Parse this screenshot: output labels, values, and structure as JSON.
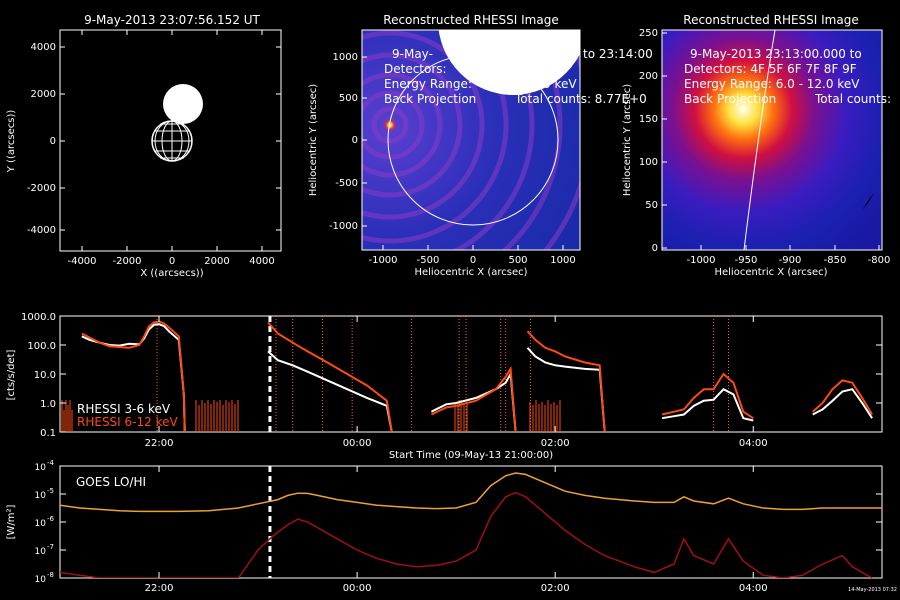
{
  "colors": {
    "background": "#000000",
    "axis": "#ffffff",
    "rhessi_low": "#ffffff",
    "rhessi_high": "#ff4a10",
    "goes_lo": "#f0a030",
    "goes_hi": "#a01010",
    "marker_line": "#ff6030"
  },
  "panel1": {
    "title": "9-May-2013 23:07:56.152 UT",
    "xlabel": "X ((arcsecs))",
    "ylabel": "Y ((arcsecs))",
    "xticks": [
      "-4000",
      "-2000",
      "0",
      "2000",
      "4000"
    ],
    "yticks": [
      "4000",
      "2000",
      "0",
      "-2000",
      "-4000"
    ]
  },
  "panel2": {
    "title": "Reconstructed RHESSI Image",
    "lines": [
      "9-May-",
      "to 23:14:00",
      "Detectors:",
      "Energy Range:",
      "0 keV",
      "Back Projection",
      "Total counts: 8.77E+0"
    ],
    "xlabel": "Heliocentric X (arcsec)",
    "ylabel": "Heliocentric Y (arcsec)",
    "xticks": [
      "-1000",
      "-500",
      "0",
      "500",
      "1000"
    ],
    "yticks": [
      "1000",
      "500",
      "0",
      "-500",
      "-1000"
    ]
  },
  "panel3": {
    "title": "Reconstructed RHESSI Image",
    "lines": [
      "9-May-2013 23:13:00.000 to",
      "Detectors: 4F 5F 6F 7F 8F 9F",
      "Energy Range: 6.0 - 12.0 keV",
      "Back Projection",
      "Total counts:"
    ],
    "xlabel": "Heliocentric X (arcsec)",
    "ylabel": "Heliocentric Y (arcsec)",
    "xticks": [
      "-1000",
      "-950",
      "-900",
      "-850",
      "-800"
    ],
    "yticks": [
      "250",
      "200",
      "150",
      "100",
      "50",
      "0"
    ]
  },
  "chart_data": [
    {
      "type": "line",
      "ylabel": "[cts/s/det]",
      "xlabel": "Start Time (09-May-13 21:00:00)",
      "x_unit": "hours since 21:00",
      "xlim": [
        0,
        8.3
      ],
      "ylim_log": [
        0.1,
        1000
      ],
      "yticks": [
        "0.1",
        "1.0",
        "10.0",
        "100.0",
        "1000.0"
      ],
      "xticks": [
        {
          "label": "22:00",
          "x": 1.0
        },
        {
          "label": "00:00",
          "x": 3.0
        },
        {
          "label": "02:00",
          "x": 5.0
        },
        {
          "label": "04:00",
          "x": 7.0
        }
      ],
      "legend": [
        "RHESSI  3-6 keV",
        "RHESSI  6-12 keV"
      ],
      "series": [
        {
          "name": "RHESSI  3-6 keV",
          "points": [
            [
              0.22,
              200
            ],
            [
              0.3,
              150
            ],
            [
              0.4,
              120
            ],
            [
              0.5,
              100
            ],
            [
              0.6,
              95
            ],
            [
              0.7,
              110
            ],
            [
              0.8,
              105
            ],
            [
              0.85,
              170
            ],
            [
              0.9,
              350
            ],
            [
              0.95,
              500
            ],
            [
              1.0,
              520
            ],
            [
              1.05,
              450
            ],
            [
              1.1,
              300
            ],
            [
              1.2,
              150
            ],
            [
              1.25,
              2
            ],
            [
              1.26,
              0.1
            ]
          ]
        },
        {
          "name": "RHESSI  6-12 keV",
          "points": [
            [
              0.22,
              250
            ],
            [
              0.3,
              180
            ],
            [
              0.4,
              120
            ],
            [
              0.5,
              90
            ],
            [
              0.6,
              85
            ],
            [
              0.7,
              80
            ],
            [
              0.8,
              100
            ],
            [
              0.85,
              200
            ],
            [
              0.9,
              450
            ],
            [
              0.95,
              600
            ],
            [
              1.0,
              650
            ],
            [
              1.05,
              550
            ],
            [
              1.1,
              400
            ],
            [
              1.2,
              200
            ],
            [
              1.25,
              2
            ],
            [
              1.26,
              0.1
            ]
          ]
        },
        {
          "name": "RHESSI  3-6 keV",
          "points": [
            [
              2.1,
              60
            ],
            [
              2.2,
              30
            ],
            [
              2.35,
              20
            ],
            [
              2.5,
              12
            ],
            [
              2.7,
              6
            ],
            [
              2.9,
              3
            ],
            [
              3.1,
              1.5
            ],
            [
              3.3,
              0.8
            ],
            [
              3.35,
              0.1
            ]
          ]
        },
        {
          "name": "RHESSI  6-12 keV",
          "points": [
            [
              2.1,
              600
            ],
            [
              2.2,
              250
            ],
            [
              2.35,
              120
            ],
            [
              2.5,
              60
            ],
            [
              2.7,
              25
            ],
            [
              2.9,
              10
            ],
            [
              3.1,
              4
            ],
            [
              3.3,
              1.2
            ],
            [
              3.35,
              0.1
            ]
          ]
        },
        {
          "name": "RHESSI  3-6 keV",
          "points": [
            [
              3.75,
              0.5
            ],
            [
              3.9,
              0.9
            ],
            [
              4.0,
              1.0
            ],
            [
              4.2,
              1.5
            ],
            [
              4.4,
              3
            ],
            [
              4.5,
              5
            ],
            [
              4.55,
              10
            ],
            [
              4.6,
              0.1
            ]
          ]
        },
        {
          "name": "RHESSI  6-12 keV",
          "points": [
            [
              3.75,
              0.4
            ],
            [
              3.9,
              0.7
            ],
            [
              4.0,
              0.8
            ],
            [
              4.2,
              1.2
            ],
            [
              4.4,
              3
            ],
            [
              4.5,
              8
            ],
            [
              4.55,
              15
            ],
            [
              4.6,
              0.1
            ]
          ]
        },
        {
          "name": "RHESSI  3-6 keV",
          "points": [
            [
              4.72,
              80
            ],
            [
              4.8,
              40
            ],
            [
              4.9,
              25
            ],
            [
              5.0,
              20
            ],
            [
              5.1,
              18
            ],
            [
              5.3,
              15
            ],
            [
              5.45,
              14
            ],
            [
              5.5,
              0.1
            ]
          ]
        },
        {
          "name": "RHESSI  6-12 keV",
          "points": [
            [
              4.72,
              300
            ],
            [
              4.8,
              150
            ],
            [
              4.9,
              80
            ],
            [
              5.0,
              60
            ],
            [
              5.1,
              40
            ],
            [
              5.3,
              25
            ],
            [
              5.45,
              20
            ],
            [
              5.5,
              0.1
            ]
          ]
        },
        {
          "name": "RHESSI  3-6 keV",
          "points": [
            [
              6.08,
              0.3
            ],
            [
              6.2,
              0.35
            ],
            [
              6.3,
              0.4
            ],
            [
              6.4,
              0.8
            ],
            [
              6.5,
              1.2
            ],
            [
              6.6,
              1.3
            ],
            [
              6.7,
              3
            ],
            [
              6.8,
              2
            ],
            [
              6.9,
              0.3
            ],
            [
              7.0,
              0.25
            ]
          ]
        },
        {
          "name": "RHESSI  6-12 keV",
          "points": [
            [
              6.08,
              0.4
            ],
            [
              6.2,
              0.5
            ],
            [
              6.3,
              0.6
            ],
            [
              6.4,
              1.5
            ],
            [
              6.5,
              3
            ],
            [
              6.6,
              3
            ],
            [
              6.7,
              10
            ],
            [
              6.8,
              5
            ],
            [
              6.9,
              0.5
            ],
            [
              7.0,
              0.3
            ]
          ]
        },
        {
          "name": "RHESSI  3-6 keV",
          "points": [
            [
              7.6,
              0.4
            ],
            [
              7.7,
              0.6
            ],
            [
              7.8,
              1.2
            ],
            [
              7.9,
              2.5
            ],
            [
              8.0,
              3
            ],
            [
              8.1,
              1
            ],
            [
              8.2,
              0.3
            ]
          ]
        },
        {
          "name": "RHESSI  6-12 keV",
          "points": [
            [
              7.6,
              0.5
            ],
            [
              7.7,
              1
            ],
            [
              7.8,
              3
            ],
            [
              7.9,
              6
            ],
            [
              8.0,
              5
            ],
            [
              8.1,
              1.5
            ],
            [
              8.2,
              0.4
            ]
          ]
        }
      ],
      "dashed_marker": 2.12,
      "dotted_markers": [
        0.98,
        2.18,
        2.35,
        2.65,
        2.95,
        3.55,
        4.03,
        4.1,
        4.45,
        4.5,
        4.75,
        6.6,
        6.75
      ]
    },
    {
      "type": "line",
      "ylabel": "[W/m²]",
      "xlabel": "Start Time (09-May-13 21:00:00)",
      "x_unit": "hours since 21:00",
      "xlim": [
        0,
        8.3
      ],
      "ylim_log": [
        -8,
        -4
      ],
      "yticks": [
        {
          "base": "10",
          "exp": "-4"
        },
        {
          "base": "10",
          "exp": "-5"
        },
        {
          "base": "10",
          "exp": "-6"
        },
        {
          "base": "10",
          "exp": "-7"
        },
        {
          "base": "10",
          "exp": "-8"
        }
      ],
      "xticks": [
        {
          "label": "22:00",
          "x": 1.0
        },
        {
          "label": "00:00",
          "x": 3.0
        },
        {
          "label": "02:00",
          "x": 5.0
        },
        {
          "label": "04:00",
          "x": 7.0
        }
      ],
      "legend": [
        "GOES LO/HI"
      ],
      "timestamp": "14-May-2013 07:32",
      "series": [
        {
          "name": "GOES LO",
          "points": [
            [
              0.0,
              -5.4
            ],
            [
              0.2,
              -5.5
            ],
            [
              0.4,
              -5.55
            ],
            [
              0.6,
              -5.6
            ],
            [
              0.8,
              -5.62
            ],
            [
              1.0,
              -5.62
            ],
            [
              1.2,
              -5.62
            ],
            [
              1.5,
              -5.6
            ],
            [
              1.8,
              -5.5
            ],
            [
              2.0,
              -5.35
            ],
            [
              2.2,
              -5.2
            ],
            [
              2.3,
              -5.05
            ],
            [
              2.4,
              -4.97
            ],
            [
              2.5,
              -4.98
            ],
            [
              2.6,
              -5.05
            ],
            [
              2.8,
              -5.2
            ],
            [
              3.0,
              -5.3
            ],
            [
              3.2,
              -5.4
            ],
            [
              3.4,
              -5.45
            ],
            [
              3.6,
              -5.5
            ],
            [
              3.8,
              -5.52
            ],
            [
              4.0,
              -5.5
            ],
            [
              4.2,
              -5.3
            ],
            [
              4.35,
              -4.7
            ],
            [
              4.5,
              -4.35
            ],
            [
              4.6,
              -4.25
            ],
            [
              4.7,
              -4.3
            ],
            [
              4.9,
              -4.6
            ],
            [
              5.1,
              -4.9
            ],
            [
              5.3,
              -5.05
            ],
            [
              5.5,
              -5.15
            ],
            [
              5.8,
              -5.25
            ],
            [
              6.0,
              -5.3
            ],
            [
              6.2,
              -5.3
            ],
            [
              6.3,
              -5.1
            ],
            [
              6.4,
              -5.25
            ],
            [
              6.6,
              -5.35
            ],
            [
              6.75,
              -5.15
            ],
            [
              6.9,
              -5.35
            ],
            [
              7.1,
              -5.5
            ],
            [
              7.3,
              -5.55
            ],
            [
              7.5,
              -5.55
            ],
            [
              7.7,
              -5.5
            ],
            [
              7.9,
              -5.5
            ],
            [
              8.1,
              -5.5
            ],
            [
              8.3,
              -5.5
            ]
          ]
        },
        {
          "name": "GOES HI",
          "points": [
            [
              0.0,
              -7.8
            ],
            [
              0.2,
              -7.9
            ],
            [
              0.4,
              -8.0
            ],
            [
              0.6,
              -8.0
            ],
            [
              0.8,
              -8.0
            ],
            [
              1.0,
              -8.0
            ],
            [
              1.2,
              -8.0
            ],
            [
              1.4,
              -8.0
            ],
            [
              1.6,
              -8.0
            ],
            [
              1.8,
              -8.0
            ],
            [
              2.0,
              -7.0
            ],
            [
              2.15,
              -6.5
            ],
            [
              2.3,
              -6.1
            ],
            [
              2.4,
              -5.9
            ],
            [
              2.5,
              -6.0
            ],
            [
              2.6,
              -6.2
            ],
            [
              2.8,
              -6.6
            ],
            [
              3.0,
              -7.0
            ],
            [
              3.2,
              -7.3
            ],
            [
              3.4,
              -7.5
            ],
            [
              3.6,
              -7.6
            ],
            [
              3.8,
              -7.55
            ],
            [
              4.0,
              -7.4
            ],
            [
              4.2,
              -7.0
            ],
            [
              4.35,
              -5.8
            ],
            [
              4.5,
              -5.1
            ],
            [
              4.6,
              -4.95
            ],
            [
              4.7,
              -5.1
            ],
            [
              4.9,
              -5.7
            ],
            [
              5.1,
              -6.3
            ],
            [
              5.3,
              -6.8
            ],
            [
              5.5,
              -7.2
            ],
            [
              5.8,
              -7.6
            ],
            [
              6.0,
              -7.8
            ],
            [
              6.2,
              -7.5
            ],
            [
              6.3,
              -6.6
            ],
            [
              6.4,
              -7.2
            ],
            [
              6.6,
              -7.5
            ],
            [
              6.75,
              -6.6
            ],
            [
              6.9,
              -7.4
            ],
            [
              7.1,
              -7.9
            ],
            [
              7.3,
              -8.0
            ],
            [
              7.5,
              -7.9
            ],
            [
              7.7,
              -7.5
            ],
            [
              7.9,
              -7.2
            ],
            [
              8.0,
              -7.6
            ],
            [
              8.2,
              -8.0
            ]
          ]
        }
      ],
      "dashed_marker": 2.12
    }
  ]
}
